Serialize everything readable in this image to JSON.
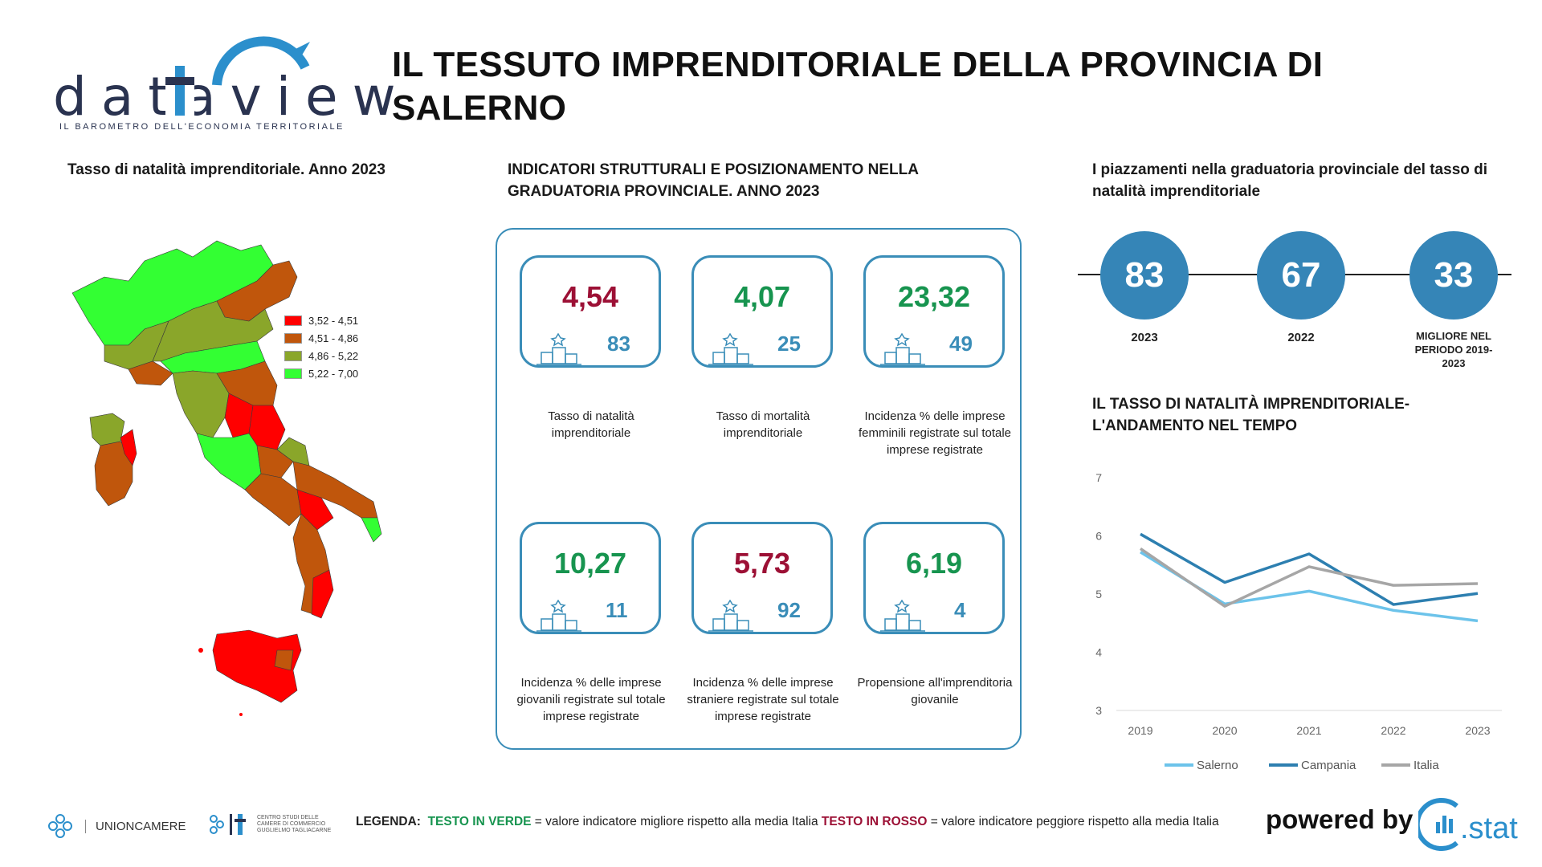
{
  "brand": {
    "name": "dataview",
    "tagline": "IL BAROMETRO DELL'ECONOMIA TERRITORIALE"
  },
  "title": "IL TESSUTO IMPRENDITORIALE DELLA PROVINCIA DI SALERNO",
  "map": {
    "title": "Tasso di natalità imprenditoriale. Anno 2023",
    "legend": [
      {
        "label": "3,52 - 4,51",
        "color": "#ff0000"
      },
      {
        "label": "4,51 - 4,86",
        "color": "#c0560c"
      },
      {
        "label": "4,86 - 5,22",
        "color": "#8aa62a"
      },
      {
        "label": "5,22 - 7,00",
        "color": "#33ff33"
      }
    ]
  },
  "indicators": {
    "title": "INDICATORI STRUTTURALI E POSIZIONAMENTO NELLA GRADUATORIA PROVINCIALE. ANNO 2023",
    "cards": [
      {
        "value": "4,54",
        "rank": "83",
        "status": "bad",
        "label": "Tasso di natalità imprenditoriale"
      },
      {
        "value": "4,07",
        "rank": "25",
        "status": "good",
        "label": "Tasso di mortalità imprenditoriale"
      },
      {
        "value": "23,32",
        "rank": "49",
        "status": "good",
        "label": "Incidenza % delle imprese femminili registrate sul totale imprese registrate"
      },
      {
        "value": "10,27",
        "rank": "11",
        "status": "good",
        "label": "Incidenza % delle imprese giovanili registrate sul totale imprese registrate"
      },
      {
        "value": "5,73",
        "rank": "92",
        "status": "bad",
        "label": "Incidenza % delle imprese straniere registrate sul totale imprese registrate"
      },
      {
        "value": "6,19",
        "rank": "4",
        "status": "good",
        "label": "Propensione all'imprenditoria giovanile"
      }
    ]
  },
  "rankings": {
    "title": "I piazzamenti nella graduatoria provinciale del tasso di natalità imprenditoriale",
    "items": [
      {
        "value": "83",
        "label": "2023"
      },
      {
        "value": "67",
        "label": "2022"
      },
      {
        "value": "33",
        "label": "MIGLIORE NEL PERIODO 2019-2023"
      }
    ]
  },
  "trend": {
    "title": "IL TASSO DI NATALITÀ IMPRENDITORIALE- L'ANDAMENTO NEL TEMPO"
  },
  "chart_data": {
    "type": "line",
    "x": [
      "2019",
      "2020",
      "2021",
      "2022",
      "2023"
    ],
    "series": [
      {
        "name": "Salerno",
        "color": "#6cc3ea",
        "values": [
          5.72,
          4.83,
          5.05,
          4.72,
          4.54
        ]
      },
      {
        "name": "Campania",
        "color": "#2d7fb0",
        "values": [
          6.03,
          5.2,
          5.69,
          4.82,
          5.01
        ]
      },
      {
        "name": "Italia",
        "color": "#a6a6a6",
        "values": [
          5.78,
          4.79,
          5.47,
          5.15,
          5.18
        ]
      }
    ],
    "ylim": [
      3,
      7
    ],
    "yticks": [
      "3",
      "4",
      "5",
      "6",
      "7"
    ],
    "grid": false,
    "legend": "bottom",
    "title": "",
    "xlabel": "",
    "ylabel": ""
  },
  "footer": {
    "unioncamere": "UNIONCAMERE",
    "centro_studi": "CENTRO STUDI DELLE CAMERE DI COMMERCIO GUGLIELMO TAGLIACARNE",
    "legend_label": "LEGENDA:",
    "legend_green": "TESTO IN VERDE",
    "legend_green_desc": "= valore indicatore migliore rispetto alla media Italia",
    "legend_red": "TESTO IN ROSSO",
    "legend_red_desc": "= valore indicatore peggiore rispetto alla media Italia",
    "powered_by": "powered by",
    "cstat": ".stat"
  }
}
